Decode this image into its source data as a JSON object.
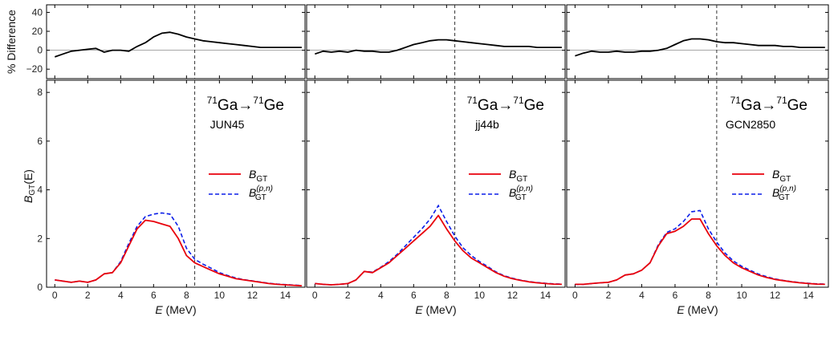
{
  "chart_data": {
    "type": "line",
    "shared": {
      "xlabel": "E (MeV)",
      "xlim": [
        -0.5,
        15.2
      ],
      "xticks": [
        0,
        2,
        4,
        6,
        8,
        10,
        12,
        14
      ],
      "diff_ylabel": "% Difference",
      "diff_ylim": [
        -30,
        48
      ],
      "diff_yticks": [
        -20,
        0,
        20,
        40
      ],
      "bgt_ylabel": "B_GT(E)",
      "bgt_ylim": [
        0,
        8.5
      ],
      "bgt_yticks": [
        0,
        2,
        4,
        6,
        8
      ],
      "dashed_line_x": 8.5,
      "title": "71Ga→71Ge",
      "legend": [
        "B_GT",
        "B_GT^(p,n)"
      ],
      "legend_position": "right",
      "colors": {
        "bgt": "#e8000b",
        "bgt_pn": "#0b1ee8",
        "diff": "#000000"
      }
    },
    "panels": [
      {
        "model": "JUN45",
        "diff": {
          "x": [
            0,
            0.5,
            1,
            1.5,
            2,
            2.5,
            3,
            3.5,
            4,
            4.5,
            5,
            5.5,
            6,
            6.5,
            7,
            7.5,
            8,
            8.5,
            9,
            9.5,
            10,
            10.5,
            11,
            11.5,
            12,
            12.5,
            13,
            13.5,
            14,
            14.5,
            15
          ],
          "y": [
            -7,
            -4,
            -1,
            0,
            1,
            2,
            -2,
            0,
            0,
            -1,
            4,
            8,
            14,
            18,
            19,
            17,
            14,
            12,
            10,
            9,
            8,
            7,
            6,
            5,
            4,
            3,
            3,
            3,
            3,
            3,
            3
          ]
        },
        "bgt": {
          "x": [
            0,
            0.5,
            1,
            1.5,
            2,
            2.5,
            3,
            3.5,
            4,
            4.5,
            5,
            5.5,
            6,
            6.5,
            7,
            7.5,
            8,
            8.5,
            9,
            9.5,
            10,
            10.5,
            11,
            11.5,
            12,
            12.5,
            13,
            13.5,
            14,
            14.5,
            15
          ],
          "y": [
            0.3,
            0.25,
            0.2,
            0.25,
            0.2,
            0.3,
            0.55,
            0.6,
            1.0,
            1.7,
            2.4,
            2.75,
            2.7,
            2.6,
            2.5,
            2.0,
            1.3,
            1.0,
            0.85,
            0.7,
            0.55,
            0.45,
            0.35,
            0.3,
            0.25,
            0.2,
            0.15,
            0.12,
            0.1,
            0.08,
            0.06
          ]
        },
        "bgt_pn": {
          "x": [
            0,
            0.5,
            1,
            1.5,
            2,
            2.5,
            3,
            3.5,
            4,
            4.5,
            5,
            5.5,
            6,
            6.5,
            7,
            7.5,
            8,
            8.5,
            9,
            9.5,
            10,
            10.5,
            11,
            11.5,
            12,
            12.5,
            13,
            13.5,
            14,
            14.5,
            15
          ],
          "y": [
            0.3,
            0.25,
            0.2,
            0.25,
            0.2,
            0.3,
            0.55,
            0.6,
            1.05,
            1.8,
            2.5,
            2.9,
            3.0,
            3.05,
            3.0,
            2.5,
            1.6,
            1.15,
            0.95,
            0.78,
            0.6,
            0.48,
            0.38,
            0.31,
            0.26,
            0.21,
            0.16,
            0.13,
            0.11,
            0.09,
            0.07
          ]
        }
      },
      {
        "model": "jj44b",
        "diff": {
          "x": [
            0,
            0.5,
            1,
            1.5,
            2,
            2.5,
            3,
            3.5,
            4,
            4.5,
            5,
            5.5,
            6,
            6.5,
            7,
            7.5,
            8,
            8.5,
            9,
            9.5,
            10,
            10.5,
            11,
            11.5,
            12,
            12.5,
            13,
            13.5,
            14,
            14.5,
            15
          ],
          "y": [
            -4,
            -1,
            -2,
            -1,
            -2,
            0,
            -1,
            -1,
            -2,
            -2,
            0,
            3,
            6,
            8,
            10,
            11,
            11,
            10,
            9,
            8,
            7,
            6,
            5,
            4,
            4,
            4,
            4,
            3,
            3,
            3,
            3
          ]
        },
        "bgt": {
          "x": [
            0,
            0.5,
            1,
            1.5,
            2,
            2.5,
            3,
            3.5,
            4,
            4.5,
            5,
            5.5,
            6,
            6.5,
            7,
            7.5,
            8,
            8.5,
            9,
            9.5,
            10,
            10.5,
            11,
            11.5,
            12,
            12.5,
            13,
            13.5,
            14,
            14.5,
            15
          ],
          "y": [
            0.15,
            0.12,
            0.1,
            0.12,
            0.15,
            0.3,
            0.65,
            0.6,
            0.8,
            1.0,
            1.3,
            1.6,
            1.9,
            2.2,
            2.5,
            2.95,
            2.4,
            1.9,
            1.5,
            1.2,
            1.0,
            0.8,
            0.6,
            0.45,
            0.35,
            0.28,
            0.22,
            0.18,
            0.15,
            0.13,
            0.12
          ]
        },
        "bgt_pn": {
          "x": [
            0,
            0.5,
            1,
            1.5,
            2,
            2.5,
            3,
            3.5,
            4,
            4.5,
            5,
            5.5,
            6,
            6.5,
            7,
            7.5,
            8,
            8.5,
            9,
            9.5,
            10,
            10.5,
            11,
            11.5,
            12,
            12.5,
            13,
            13.5,
            14,
            14.5,
            15
          ],
          "y": [
            0.15,
            0.12,
            0.1,
            0.12,
            0.15,
            0.3,
            0.65,
            0.62,
            0.82,
            1.05,
            1.35,
            1.7,
            2.05,
            2.4,
            2.8,
            3.35,
            2.7,
            2.1,
            1.62,
            1.3,
            1.05,
            0.85,
            0.63,
            0.47,
            0.37,
            0.29,
            0.23,
            0.19,
            0.16,
            0.14,
            0.13
          ]
        }
      },
      {
        "model": "GCN2850",
        "diff": {
          "x": [
            0,
            0.5,
            1,
            1.5,
            2,
            2.5,
            3,
            3.5,
            4,
            4.5,
            5,
            5.5,
            6,
            6.5,
            7,
            7.5,
            8,
            8.5,
            9,
            9.5,
            10,
            10.5,
            11,
            11.5,
            12,
            12.5,
            13,
            13.5,
            14,
            14.5,
            15
          ],
          "y": [
            -6,
            -3,
            -1,
            -2,
            -2,
            -1,
            -2,
            -2,
            -1,
            -1,
            0,
            2,
            6,
            10,
            12,
            12,
            11,
            9,
            8,
            8,
            7,
            6,
            5,
            5,
            5,
            4,
            4,
            3,
            3,
            3,
            3
          ]
        },
        "bgt": {
          "x": [
            0,
            0.5,
            1,
            1.5,
            2,
            2.5,
            3,
            3.5,
            4,
            4.5,
            5,
            5.5,
            6,
            6.5,
            7,
            7.5,
            8,
            8.5,
            9,
            9.5,
            10,
            10.5,
            11,
            11.5,
            12,
            12.5,
            13,
            13.5,
            14,
            14.5,
            15
          ],
          "y": [
            0.12,
            0.12,
            0.15,
            0.18,
            0.2,
            0.3,
            0.5,
            0.55,
            0.7,
            1.0,
            1.7,
            2.2,
            2.3,
            2.5,
            2.8,
            2.8,
            2.2,
            1.7,
            1.3,
            1.0,
            0.8,
            0.65,
            0.5,
            0.4,
            0.32,
            0.27,
            0.22,
            0.18,
            0.15,
            0.13,
            0.12
          ]
        },
        "bgt_pn": {
          "x": [
            0,
            0.5,
            1,
            1.5,
            2,
            2.5,
            3,
            3.5,
            4,
            4.5,
            5,
            5.5,
            6,
            6.5,
            7,
            7.5,
            8,
            8.5,
            9,
            9.5,
            10,
            10.5,
            11,
            11.5,
            12,
            12.5,
            13,
            13.5,
            14,
            14.5,
            15
          ],
          "y": [
            0.12,
            0.12,
            0.15,
            0.18,
            0.2,
            0.3,
            0.5,
            0.55,
            0.7,
            1.0,
            1.75,
            2.25,
            2.4,
            2.7,
            3.1,
            3.15,
            2.4,
            1.85,
            1.4,
            1.08,
            0.86,
            0.7,
            0.54,
            0.43,
            0.34,
            0.28,
            0.23,
            0.19,
            0.16,
            0.14,
            0.13
          ]
        }
      }
    ]
  }
}
